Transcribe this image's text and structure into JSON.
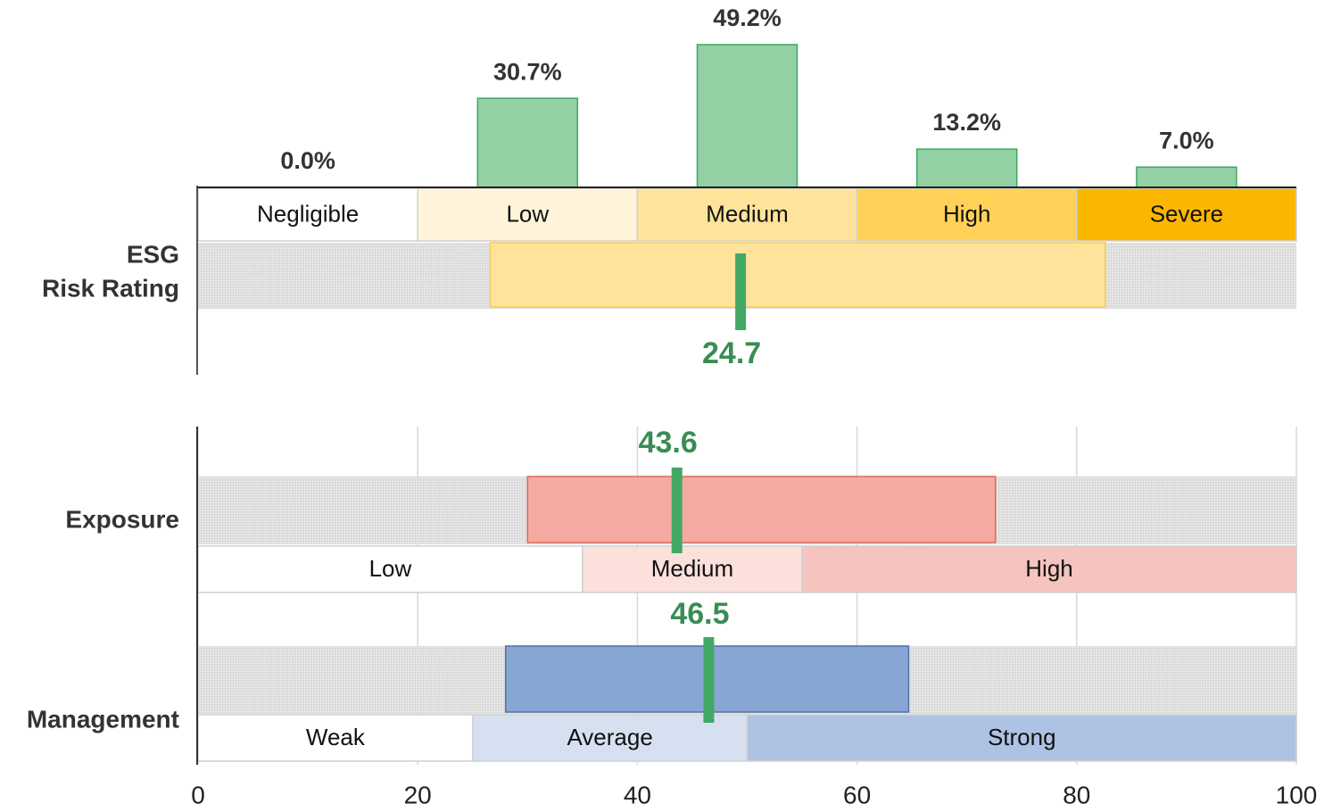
{
  "chart_data": [
    {
      "type": "range",
      "title": [
        "ESG",
        "Risk Rating"
      ],
      "xlim": [
        0,
        50
      ],
      "bands": [
        {
          "label": "Negligible",
          "start": 0,
          "end": 10,
          "color": "#ffffff"
        },
        {
          "label": "Low",
          "start": 10,
          "end": 20,
          "color": "#fff4d9"
        },
        {
          "label": "Medium",
          "start": 20,
          "end": 30,
          "color": "#ffe39a"
        },
        {
          "label": "High",
          "start": 30,
          "end": 40,
          "color": "#ffd257"
        },
        {
          "label": "Severe",
          "start": 40,
          "end": 50,
          "color": "#fbb700"
        }
      ],
      "distribution": {
        "values": [
          0.0,
          30.7,
          49.2,
          13.2,
          7.0
        ],
        "value_labels": [
          "0.0%",
          "30.7%",
          "49.2%",
          "13.2%",
          "7.0%"
        ],
        "color": "#93d0a4",
        "ylim": [
          0,
          50
        ]
      },
      "range": [
        13.3,
        41.3
      ],
      "range_color": "#ffe39a",
      "value": 24.7,
      "marker_color": "#44a865"
    },
    {
      "type": "range",
      "title": [
        "Exposure"
      ],
      "xlim": [
        0,
        100
      ],
      "bands": [
        {
          "label": "Low",
          "start": 0,
          "end": 35,
          "color": "#ffffff"
        },
        {
          "label": "Medium",
          "start": 35,
          "end": 55,
          "color": "#fbe0dc"
        },
        {
          "label": "High",
          "start": 55,
          "end": 100,
          "color": "#f5c4be"
        }
      ],
      "range": [
        30.0,
        72.6
      ],
      "range_color": "#f4aaa0",
      "value": 43.6,
      "marker_color": "#44a865",
      "grid": true
    },
    {
      "type": "range",
      "title": [
        "Management"
      ],
      "xlim": [
        0,
        100
      ],
      "bands": [
        {
          "label": "Weak",
          "start": 0,
          "end": 25,
          "color": "#ffffff"
        },
        {
          "label": "Average",
          "start": 25,
          "end": 50,
          "color": "#d6e0f0"
        },
        {
          "label": "Strong",
          "start": 50,
          "end": 100,
          "color": "#aec3e3"
        }
      ],
      "range": [
        28.0,
        64.7
      ],
      "range_color": "#87a6d4",
      "value": 46.5,
      "marker_color": "#44a865",
      "grid": true,
      "xticks": [
        0,
        20,
        40,
        60,
        80,
        100
      ]
    }
  ]
}
